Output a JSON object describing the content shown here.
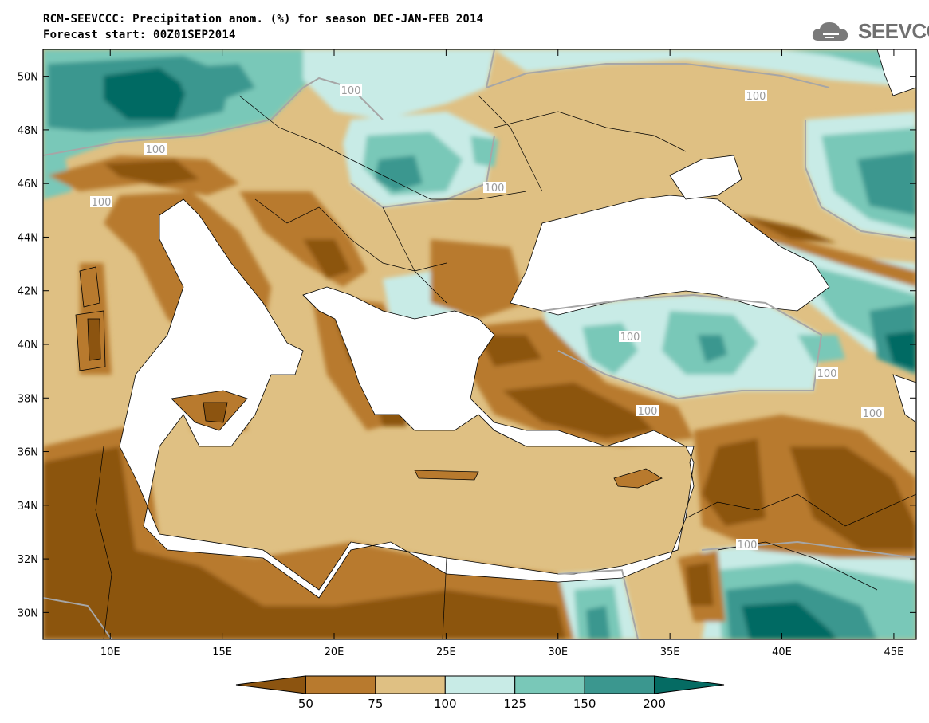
{
  "header": {
    "line1": "RCM-SEEVCCC: Precipitation anom. (%) for season DEC-JAN-FEB 2014",
    "line2": "Forecast start: 00Z01SEP2014"
  },
  "logo": {
    "text": "SEEVCCC",
    "icon": "cloud-icon"
  },
  "map": {
    "lon_range": [
      7,
      46
    ],
    "lat_range": [
      29,
      51
    ],
    "lon_ticks": [
      "10E",
      "15E",
      "20E",
      "25E",
      "30E",
      "35E",
      "40E",
      "45E"
    ],
    "lat_ticks": [
      "30N",
      "32N",
      "34N",
      "36N",
      "38N",
      "40N",
      "42N",
      "44N",
      "46N",
      "48N",
      "50N"
    ],
    "contour_labels": [
      "100",
      "100",
      "100",
      "100",
      "100",
      "100",
      "100",
      "100",
      "100",
      "100"
    ]
  },
  "colorbar": {
    "levels": [
      "50",
      "75",
      "100",
      "125",
      "150",
      "200"
    ],
    "colors": [
      "#8c5410",
      "#b87a2e",
      "#dfc083",
      "#c8ebe6",
      "#79c8b8",
      "#3b978f",
      "#056b63"
    ]
  }
}
